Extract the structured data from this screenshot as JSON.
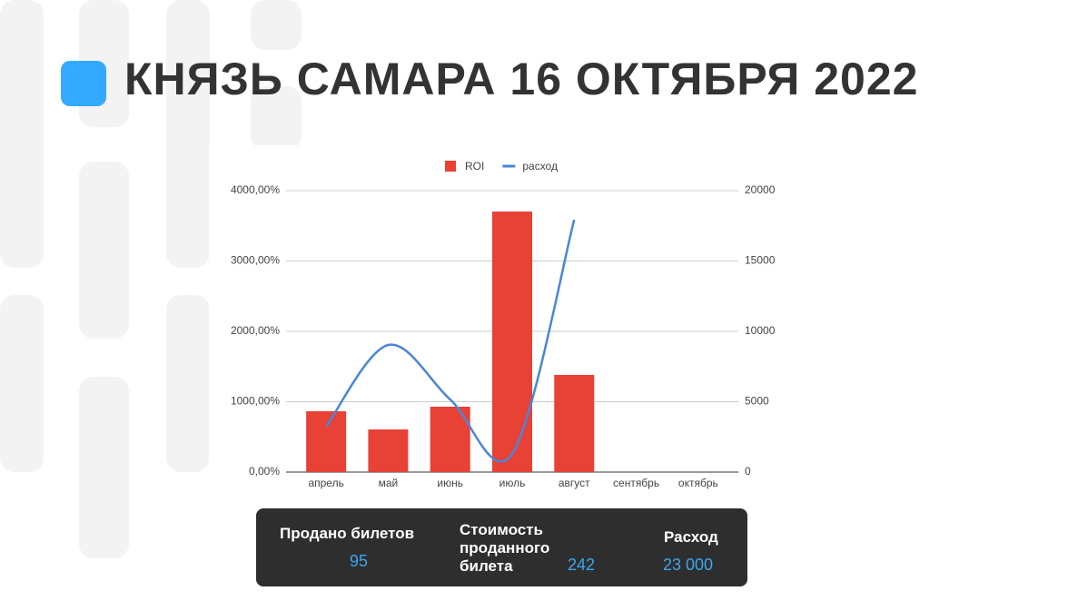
{
  "title": "КНЯЗЬ САМАРА 16 ОКТЯБРЯ 2022",
  "chart_data": {
    "type": "bar",
    "categories": [
      "апрель",
      "май",
      "июнь",
      "июль",
      "август",
      "сентябрь",
      "октябрь"
    ],
    "series": [
      {
        "name": "ROI",
        "color": "#e84136",
        "type": "bar",
        "values": [
          865,
          606,
          929,
          3703,
          1381,
          null,
          null
        ]
      },
      {
        "name": "расход",
        "color": "#4a86d8",
        "type": "line",
        "axis": "y2",
        "values": [
          3226,
          9032,
          5161,
          1290,
          17935,
          null,
          null
        ]
      }
    ],
    "ylim": [
      0,
      4000
    ],
    "yticks": [
      {
        "value": 0,
        "label": "0,00%"
      },
      {
        "value": 1000,
        "label": "1000,00%"
      },
      {
        "value": 2000,
        "label": "2000,00%"
      },
      {
        "value": 3000,
        "label": "3000,00%"
      },
      {
        "value": 4000,
        "label": "4000,00%"
      }
    ],
    "y2lim": [
      0,
      20000
    ],
    "y2ticks": [
      0,
      5000,
      10000,
      15000,
      20000
    ],
    "grid": true,
    "legend": "top"
  },
  "stats": [
    {
      "label": "Продано билетов",
      "value": "95"
    },
    {
      "label": "Стоимость проданного билета",
      "value": "242"
    },
    {
      "label": "Расход",
      "value": "23 000"
    }
  ]
}
